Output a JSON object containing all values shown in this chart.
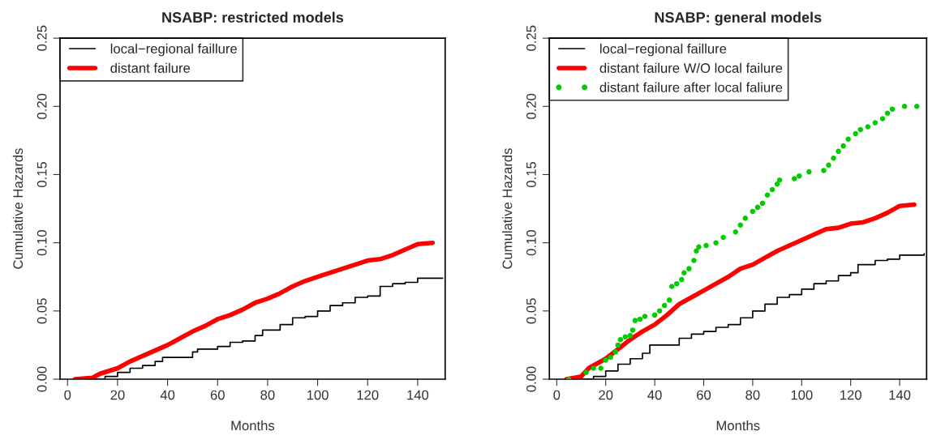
{
  "chart_data": [
    {
      "type": "line",
      "title": "NSABP: restricted models",
      "xlabel": "Months",
      "ylabel": "Cumulative Hazards",
      "xlim": [
        -3,
        151
      ],
      "ylim": [
        0,
        0.25
      ],
      "xticks": [
        0,
        20,
        40,
        60,
        80,
        100,
        120,
        140
      ],
      "yticks": [
        {
          "value": 0,
          "label": "0.00"
        },
        {
          "value": 0.05,
          "label": "0.05"
        },
        {
          "value": 0.1,
          "label": "0.10"
        },
        {
          "value": 0.15,
          "label": "0.15"
        },
        {
          "value": 0.2,
          "label": "0.20"
        },
        {
          "value": 0.25,
          "label": "0.25"
        }
      ],
      "legend": "top left",
      "grid": false,
      "series": [
        {
          "name": "local−regional faillure",
          "type": "step",
          "color": "#000000",
          "x": [
            11,
            15,
            20,
            25,
            30,
            35,
            38,
            45,
            50,
            52,
            57,
            60,
            65,
            70,
            75,
            78,
            85,
            90,
            95,
            100,
            105,
            110,
            115,
            120,
            125,
            130,
            135,
            140,
            150
          ],
          "values": [
            0,
            0.002,
            0.005,
            0.008,
            0.01,
            0.013,
            0.016,
            0.016,
            0.02,
            0.022,
            0.022,
            0.024,
            0.027,
            0.028,
            0.032,
            0.036,
            0.04,
            0.045,
            0.046,
            0.05,
            0.054,
            0.056,
            0.06,
            0.061,
            0.068,
            0.07,
            0.071,
            0.074,
            0.074
          ]
        },
        {
          "name": "distant failure",
          "color": "#ff0000",
          "x": [
            3,
            10,
            13,
            20,
            25,
            30,
            35,
            40,
            45,
            50,
            55,
            60,
            65,
            70,
            75,
            80,
            85,
            90,
            95,
            100,
            105,
            110,
            115,
            120,
            125,
            130,
            135,
            140,
            146
          ],
          "values": [
            0,
            0.001,
            0.004,
            0.008,
            0.013,
            0.017,
            0.021,
            0.025,
            0.03,
            0.035,
            0.039,
            0.044,
            0.047,
            0.051,
            0.056,
            0.059,
            0.063,
            0.068,
            0.072,
            0.075,
            0.078,
            0.081,
            0.084,
            0.087,
            0.088,
            0.091,
            0.095,
            0.099,
            0.1
          ]
        }
      ]
    },
    {
      "type": "line",
      "title": "NSABP: general models",
      "xlabel": "Months",
      "ylabel": "Cumulative Hazards",
      "xlim": [
        -3,
        151
      ],
      "ylim": [
        0,
        0.25
      ],
      "xticks": [
        0,
        20,
        40,
        60,
        80,
        100,
        120,
        140
      ],
      "yticks": [
        {
          "value": 0,
          "label": "0.00"
        },
        {
          "value": 0.05,
          "label": "0.05"
        },
        {
          "value": 0.1,
          "label": "0.10"
        },
        {
          "value": 0.15,
          "label": "0.15"
        },
        {
          "value": 0.2,
          "label": "0.20"
        },
        {
          "value": 0.25,
          "label": "0.25"
        }
      ],
      "legend": "top left",
      "grid": false,
      "series": [
        {
          "name": "local−regional faillure",
          "type": "step",
          "color": "#000000",
          "x": [
            9,
            15,
            20,
            25,
            30,
            35,
            38,
            45,
            50,
            55,
            60,
            65,
            70,
            75,
            80,
            85,
            90,
            95,
            100,
            105,
            110,
            115,
            120,
            123,
            130,
            135,
            140,
            150
          ],
          "values": [
            0,
            0.002,
            0.006,
            0.011,
            0.015,
            0.019,
            0.025,
            0.025,
            0.03,
            0.033,
            0.035,
            0.038,
            0.04,
            0.045,
            0.05,
            0.055,
            0.06,
            0.062,
            0.066,
            0.07,
            0.072,
            0.076,
            0.078,
            0.084,
            0.087,
            0.088,
            0.091,
            0.092
          ]
        },
        {
          "name": "distant failure W/O local failure",
          "color": "#ff0000",
          "x": [
            4,
            10,
            13,
            20,
            25,
            30,
            35,
            40,
            45,
            50,
            55,
            60,
            65,
            70,
            75,
            80,
            85,
            90,
            95,
            100,
            105,
            110,
            115,
            120,
            125,
            130,
            135,
            140,
            146
          ],
          "values": [
            0,
            0.002,
            0.008,
            0.015,
            0.022,
            0.029,
            0.035,
            0.04,
            0.047,
            0.055,
            0.06,
            0.065,
            0.07,
            0.075,
            0.081,
            0.084,
            0.089,
            0.094,
            0.098,
            0.102,
            0.106,
            0.11,
            0.111,
            0.114,
            0.115,
            0.118,
            0.122,
            0.127,
            0.128
          ]
        },
        {
          "name": "distant failure after local faliure",
          "type": "scatter",
          "marker": "circle",
          "color": "#00cc00",
          "x": [
            5,
            12,
            15,
            18,
            20,
            22,
            24,
            25,
            26,
            28,
            30,
            31,
            32,
            34,
            36,
            40,
            42,
            44,
            46,
            47,
            49,
            51,
            52,
            54,
            56,
            57,
            58,
            61,
            65,
            68,
            73,
            75,
            77,
            80,
            82,
            84,
            86,
            88,
            90,
            91,
            97,
            99,
            103,
            109,
            111,
            113,
            115,
            117,
            119,
            122,
            124,
            127,
            130,
            133,
            135,
            137,
            142,
            147
          ],
          "values": [
            0,
            0.005,
            0.008,
            0.008,
            0.014,
            0.016,
            0.02,
            0.025,
            0.029,
            0.031,
            0.032,
            0.036,
            0.043,
            0.044,
            0.046,
            0.047,
            0.05,
            0.054,
            0.058,
            0.068,
            0.07,
            0.073,
            0.078,
            0.081,
            0.087,
            0.094,
            0.097,
            0.098,
            0.1,
            0.104,
            0.108,
            0.113,
            0.118,
            0.123,
            0.126,
            0.129,
            0.135,
            0.139,
            0.143,
            0.146,
            0.147,
            0.149,
            0.152,
            0.153,
            0.157,
            0.162,
            0.167,
            0.171,
            0.176,
            0.18,
            0.183,
            0.185,
            0.188,
            0.191,
            0.195,
            0.198,
            0.2,
            0.2
          ]
        }
      ]
    }
  ]
}
